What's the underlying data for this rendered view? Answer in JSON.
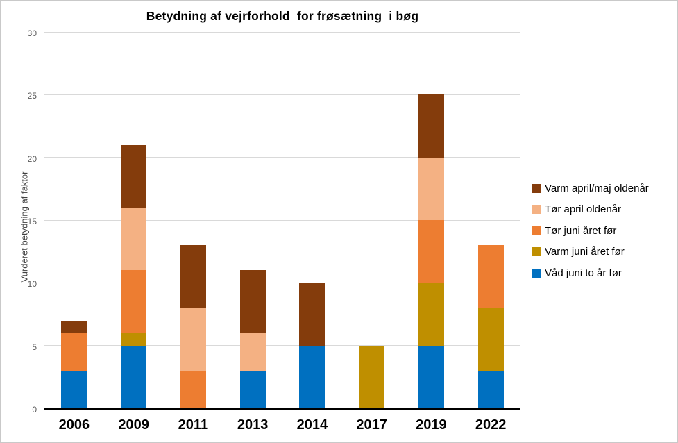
{
  "chart_data": {
    "type": "bar",
    "stacked": true,
    "title": "Betydning af vejrforhold  for frøsætning  i bøg",
    "ylabel": "Vurderet betydning af faktor",
    "xlabel": "",
    "ylim": [
      0,
      30
    ],
    "yticks": [
      0,
      5,
      10,
      15,
      20,
      25,
      30
    ],
    "grid": true,
    "legend_position": "right",
    "categories": [
      "2006",
      "2009",
      "2011",
      "2013",
      "2014",
      "2017",
      "2019",
      "2022"
    ],
    "series": [
      {
        "name": "Våd juni to år før",
        "color": "#0070C0",
        "values": [
          3,
          5,
          0,
          3,
          5,
          0,
          5,
          3
        ]
      },
      {
        "name": "Varm juni året før",
        "color": "#BF8F00",
        "values": [
          0,
          1,
          0,
          0,
          0,
          5,
          5,
          5
        ]
      },
      {
        "name": "Tør juni året før",
        "color": "#ED7D31",
        "values": [
          3,
          5,
          3,
          0,
          0,
          0,
          5,
          5
        ]
      },
      {
        "name": "Tør april oldenår",
        "color": "#F4B183",
        "values": [
          0,
          5,
          5,
          3,
          0,
          0,
          5,
          0
        ]
      },
      {
        "name": "Varm april/maj oldenår",
        "color": "#843C0C",
        "values": [
          1,
          5,
          5,
          5,
          5,
          0,
          5,
          0
        ]
      }
    ],
    "stack_order_note": "first series is bottom of stack",
    "legend_order_top_to_bottom": [
      "Varm april/maj oldenår",
      "Tør april oldenår",
      "Tør juni året før",
      "Varm juni året før",
      "Våd juni to år før"
    ],
    "colors": {
      "gridline": "#D9D9D9",
      "axis_line": "#000000",
      "y_tick_text": "#595959",
      "x_tick_text": "#000000"
    }
  }
}
